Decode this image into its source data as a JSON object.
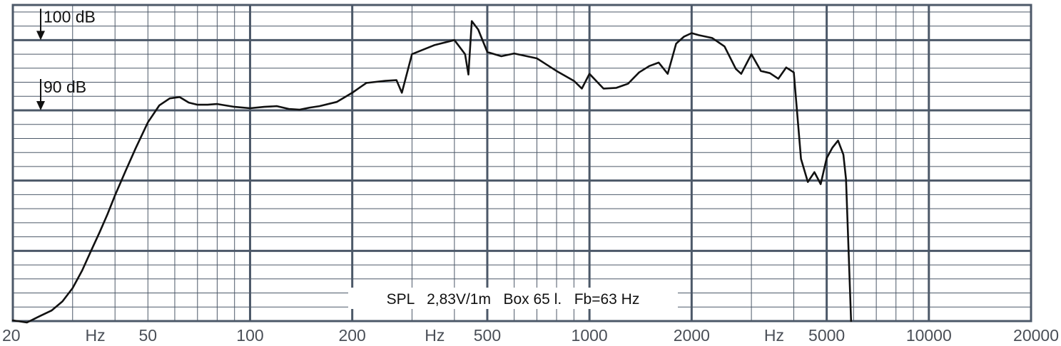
{
  "chart_data": {
    "type": "line",
    "title": "",
    "xlabel": "Hz",
    "ylabel": "",
    "x_scale": "log",
    "xlim": [
      20,
      20000
    ],
    "ylim": [
      60,
      105
    ],
    "grid": true,
    "x_tick_labels": [
      {
        "value": 20,
        "label": "20"
      },
      {
        "value": 35,
        "label": "Hz"
      },
      {
        "value": 50,
        "label": "50"
      },
      {
        "value": 100,
        "label": "100"
      },
      {
        "value": 200,
        "label": "200"
      },
      {
        "value": 350,
        "label": "Hz"
      },
      {
        "value": 500,
        "label": "500"
      },
      {
        "value": 1000,
        "label": "1000"
      },
      {
        "value": 2000,
        "label": "2000"
      },
      {
        "value": 3500,
        "label": "Hz"
      },
      {
        "value": 5000,
        "label": "5000"
      },
      {
        "value": 10000,
        "label": "10000"
      },
      {
        "value": 20000,
        "label": "20000"
      }
    ],
    "annotations": [
      {
        "value": 100,
        "text": "100 dB"
      },
      {
        "value": 90,
        "text": "90 dB"
      }
    ],
    "caption": "SPL   2,83V/1m   Box 65 l.   Fb=63 Hz",
    "series": [
      {
        "name": "",
        "color": "#111111",
        "x": [
          20,
          22,
          24,
          26,
          28,
          30,
          32,
          34,
          36,
          38,
          40,
          43,
          46,
          50,
          54,
          58,
          62,
          66,
          70,
          75,
          80,
          90,
          100,
          110,
          120,
          130,
          140,
          150,
          160,
          180,
          200,
          220,
          250,
          270,
          280,
          300,
          350,
          400,
          430,
          440,
          450,
          470,
          500,
          550,
          600,
          700,
          800,
          900,
          950,
          1000,
          1100,
          1200,
          1300,
          1400,
          1500,
          1600,
          1700,
          1800,
          1900,
          2000,
          2100,
          2300,
          2500,
          2700,
          2800,
          3000,
          3200,
          3400,
          3600,
          3800,
          4000,
          4200,
          4400,
          4600,
          4800,
          5000,
          5200,
          5400,
          5600,
          5700,
          5800,
          5900
        ],
        "y": [
          60.1,
          59.8,
          60.7,
          61.5,
          62.8,
          64.7,
          67.2,
          70.0,
          72.6,
          75.2,
          77.9,
          81.4,
          84.6,
          88.3,
          90.7,
          91.7,
          91.9,
          91.1,
          90.8,
          90.8,
          90.9,
          90.5,
          90.3,
          90.5,
          90.6,
          90.2,
          90.1,
          90.4,
          90.6,
          91.2,
          92.5,
          93.9,
          94.2,
          94.3,
          92.5,
          98.0,
          99.3,
          100.0,
          98.0,
          95.1,
          102.7,
          101.5,
          98.3,
          97.7,
          98.1,
          97.4,
          95.6,
          94.2,
          93.1,
          95.2,
          93.1,
          93.2,
          93.8,
          95.4,
          96.3,
          96.8,
          95.2,
          99.5,
          100.5,
          101.0,
          100.7,
          100.3,
          99.1,
          95.9,
          95.2,
          98.0,
          95.6,
          95.3,
          94.5,
          96.1,
          95.4,
          83.1,
          79.8,
          81.2,
          79.5,
          83.2,
          84.7,
          85.7,
          83.7,
          80.2,
          70.0,
          60.0
        ]
      }
    ]
  }
}
